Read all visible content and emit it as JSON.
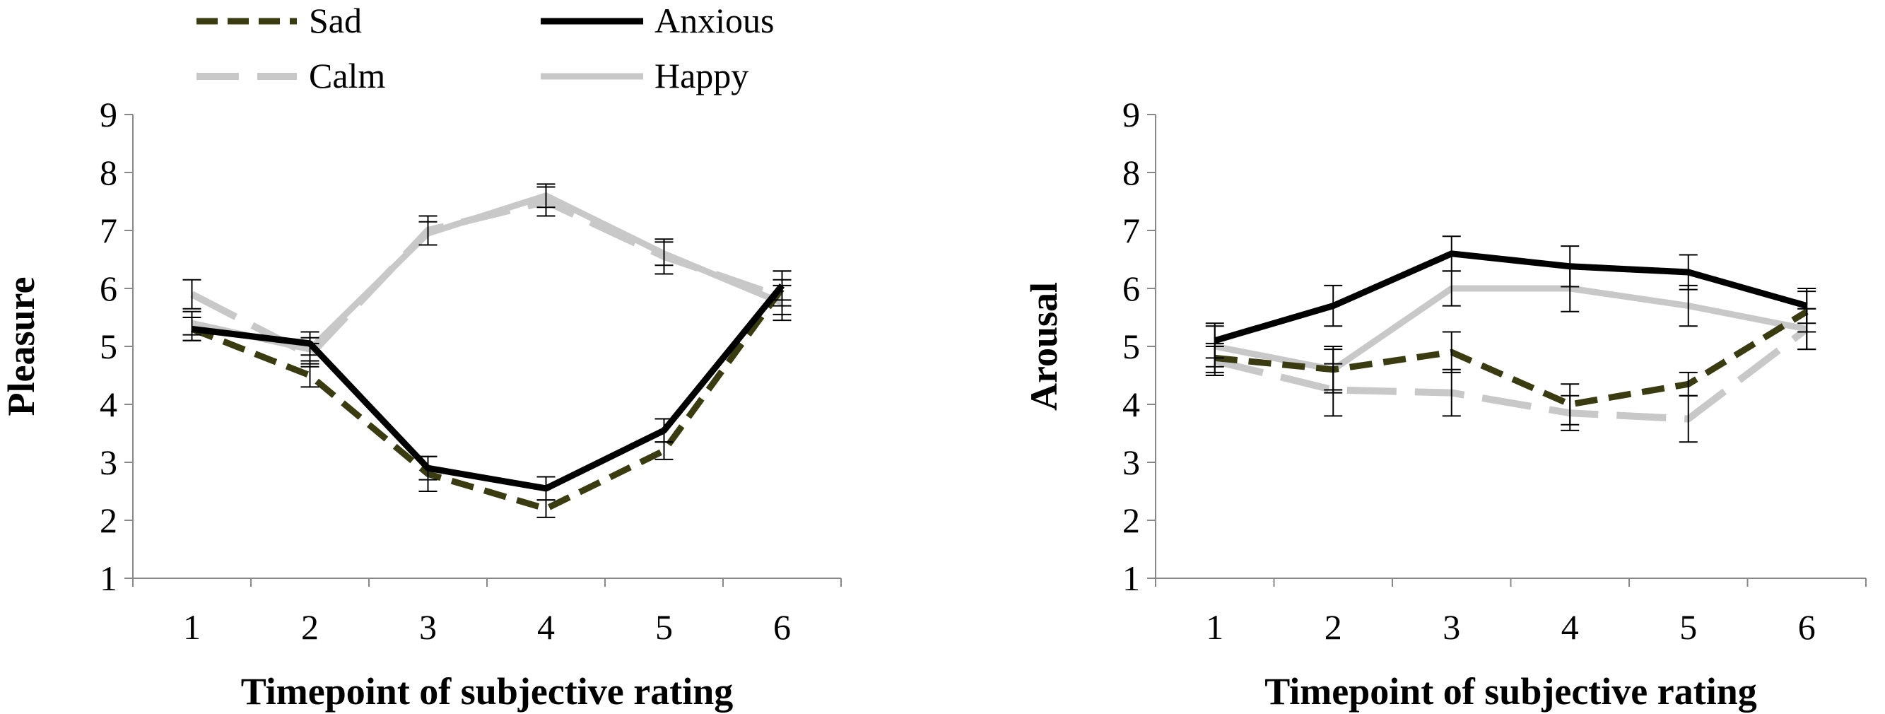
{
  "legend": [
    {
      "name": "Sad",
      "color": "#3b3b12",
      "style": "short-dash"
    },
    {
      "name": "Anxious",
      "color": "#000000",
      "style": "solid"
    },
    {
      "name": "Calm",
      "color": "#c8c8c8",
      "style": "long-dash"
    },
    {
      "name": "Happy",
      "color": "#c8c8c8",
      "style": "solid"
    }
  ],
  "chart_data": [
    {
      "type": "line",
      "id": "pleasure",
      "xlabel": "Timepoint of subjective rating",
      "ylabel": "Pleasure",
      "x": [
        1,
        2,
        3,
        4,
        5,
        6
      ],
      "xticks": [
        "1",
        "2",
        "3",
        "4",
        "5",
        "6"
      ],
      "ylim": [
        1,
        9
      ],
      "yticks": [
        "1",
        "2",
        "3",
        "4",
        "5",
        "6",
        "7",
        "8",
        "9"
      ],
      "series": [
        {
          "name": "Sad",
          "values": [
            5.3,
            4.5,
            2.8,
            2.2,
            3.2,
            6.0
          ],
          "err": [
            0.2,
            0.2,
            0.3,
            0.15,
            0.15,
            0.3
          ]
        },
        {
          "name": "Anxious",
          "values": [
            5.3,
            5.05,
            2.9,
            2.55,
            3.55,
            6.05
          ],
          "err": [
            0.2,
            0.2,
            0.2,
            0.2,
            0.2,
            0.25
          ]
        },
        {
          "name": "Calm",
          "values": [
            5.9,
            4.85,
            7.0,
            7.5,
            6.55,
            5.85
          ],
          "err": [
            0.25,
            0.2,
            0.25,
            0.25,
            0.3,
            0.3
          ]
        },
        {
          "name": "Happy",
          "values": [
            5.4,
            4.95,
            6.95,
            7.6,
            6.6,
            5.75
          ],
          "err": [
            0.2,
            0.2,
            0.2,
            0.2,
            0.2,
            0.3
          ]
        }
      ]
    },
    {
      "type": "line",
      "id": "arousal",
      "xlabel": "Timepoint of subjective rating",
      "ylabel": "Arousal",
      "x": [
        1,
        2,
        3,
        4,
        5,
        6
      ],
      "xticks": [
        "1",
        "2",
        "3",
        "4",
        "5",
        "6"
      ],
      "ylim": [
        1,
        9
      ],
      "yticks": [
        "1",
        "2",
        "3",
        "4",
        "5",
        "6",
        "7",
        "8",
        "9"
      ],
      "series": [
        {
          "name": "Sad",
          "values": [
            4.8,
            4.6,
            4.9,
            4.0,
            4.35,
            5.6
          ],
          "err": [
            0.25,
            0.35,
            0.35,
            0.35,
            0.2,
            0.35
          ]
        },
        {
          "name": "Anxious",
          "values": [
            5.1,
            5.7,
            6.6,
            6.38,
            6.28,
            5.7
          ],
          "err": [
            0.3,
            0.35,
            0.3,
            0.35,
            0.3,
            0.3
          ]
        },
        {
          "name": "Calm",
          "values": [
            4.75,
            4.25,
            4.2,
            3.85,
            3.75,
            5.3
          ],
          "err": [
            0.25,
            0.45,
            0.4,
            0.3,
            0.4,
            0.35
          ]
        },
        {
          "name": "Happy",
          "values": [
            5.0,
            4.6,
            6.0,
            6.0,
            5.7,
            5.3
          ],
          "err": [
            0.35,
            0.4,
            0.3,
            0.4,
            0.35,
            0.35
          ]
        }
      ]
    }
  ]
}
